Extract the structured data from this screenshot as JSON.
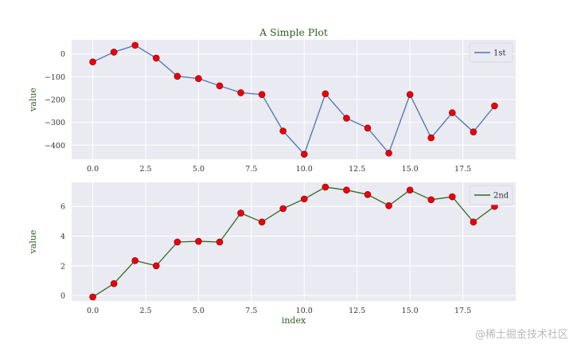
{
  "chart_data": [
    {
      "type": "line",
      "title": "A Simple Plot",
      "xlabel": "",
      "ylabel": "value",
      "x": [
        0,
        1,
        2,
        3,
        4,
        5,
        6,
        7,
        8,
        9,
        10,
        11,
        12,
        13,
        14,
        15,
        16,
        17,
        18,
        19
      ],
      "xlim": [
        -1.0,
        20.0
      ],
      "ylim": [
        -462,
        62
      ],
      "xticks": [
        0.0,
        2.5,
        5.0,
        7.5,
        10.0,
        12.5,
        15.0,
        17.5
      ],
      "xtick_labels": [
        "0.0",
        "2.5",
        "5.0",
        "7.5",
        "10.0",
        "12.5",
        "15.0",
        "17.5"
      ],
      "yticks": [
        0,
        -100,
        -200,
        -300,
        -400
      ],
      "ytick_labels": [
        "0",
        "−100",
        "−200",
        "−300",
        "−400"
      ],
      "legend_position": "top-right",
      "series": [
        {
          "name": "1st",
          "color": "#4c72b0",
          "marker_color": "#e8000b",
          "values": [
            -35,
            8,
            38,
            -18,
            -98,
            -108,
            -140,
            -170,
            -178,
            -338,
            -440,
            -175,
            -282,
            -325,
            -435,
            -178,
            -368,
            -258,
            -342,
            -228
          ]
        }
      ]
    },
    {
      "type": "line",
      "title": "",
      "xlabel": "index",
      "ylabel": "value",
      "x": [
        0,
        1,
        2,
        3,
        4,
        5,
        6,
        7,
        8,
        9,
        10,
        11,
        12,
        13,
        14,
        15,
        16,
        17,
        18,
        19
      ],
      "xlim": [
        -1.0,
        20.0
      ],
      "ylim": [
        -0.37,
        7.62
      ],
      "xticks": [
        0.0,
        2.5,
        5.0,
        7.5,
        10.0,
        12.5,
        15.0,
        17.5
      ],
      "xtick_labels": [
        "0.0",
        "2.5",
        "5.0",
        "7.5",
        "10.0",
        "12.5",
        "15.0",
        "17.5"
      ],
      "yticks": [
        0,
        2,
        4,
        6
      ],
      "ytick_labels": [
        "0",
        "2",
        "4",
        "6"
      ],
      "legend_position": "top-right",
      "series": [
        {
          "name": "2nd",
          "color": "#2f6b21",
          "marker_color": "#e8000b",
          "values": [
            -0.1,
            0.8,
            2.35,
            2.0,
            3.6,
            3.65,
            3.6,
            5.55,
            4.95,
            5.85,
            6.5,
            7.3,
            7.1,
            6.8,
            6.05,
            7.1,
            6.45,
            6.65,
            4.95,
            6.0
          ]
        }
      ]
    }
  ],
  "watermark": "@稀土掘金技术社区",
  "colors": {
    "plot_bg": "#eaeaf2",
    "grid": "#ffffff",
    "legend_bg": "#eaeaf2"
  }
}
